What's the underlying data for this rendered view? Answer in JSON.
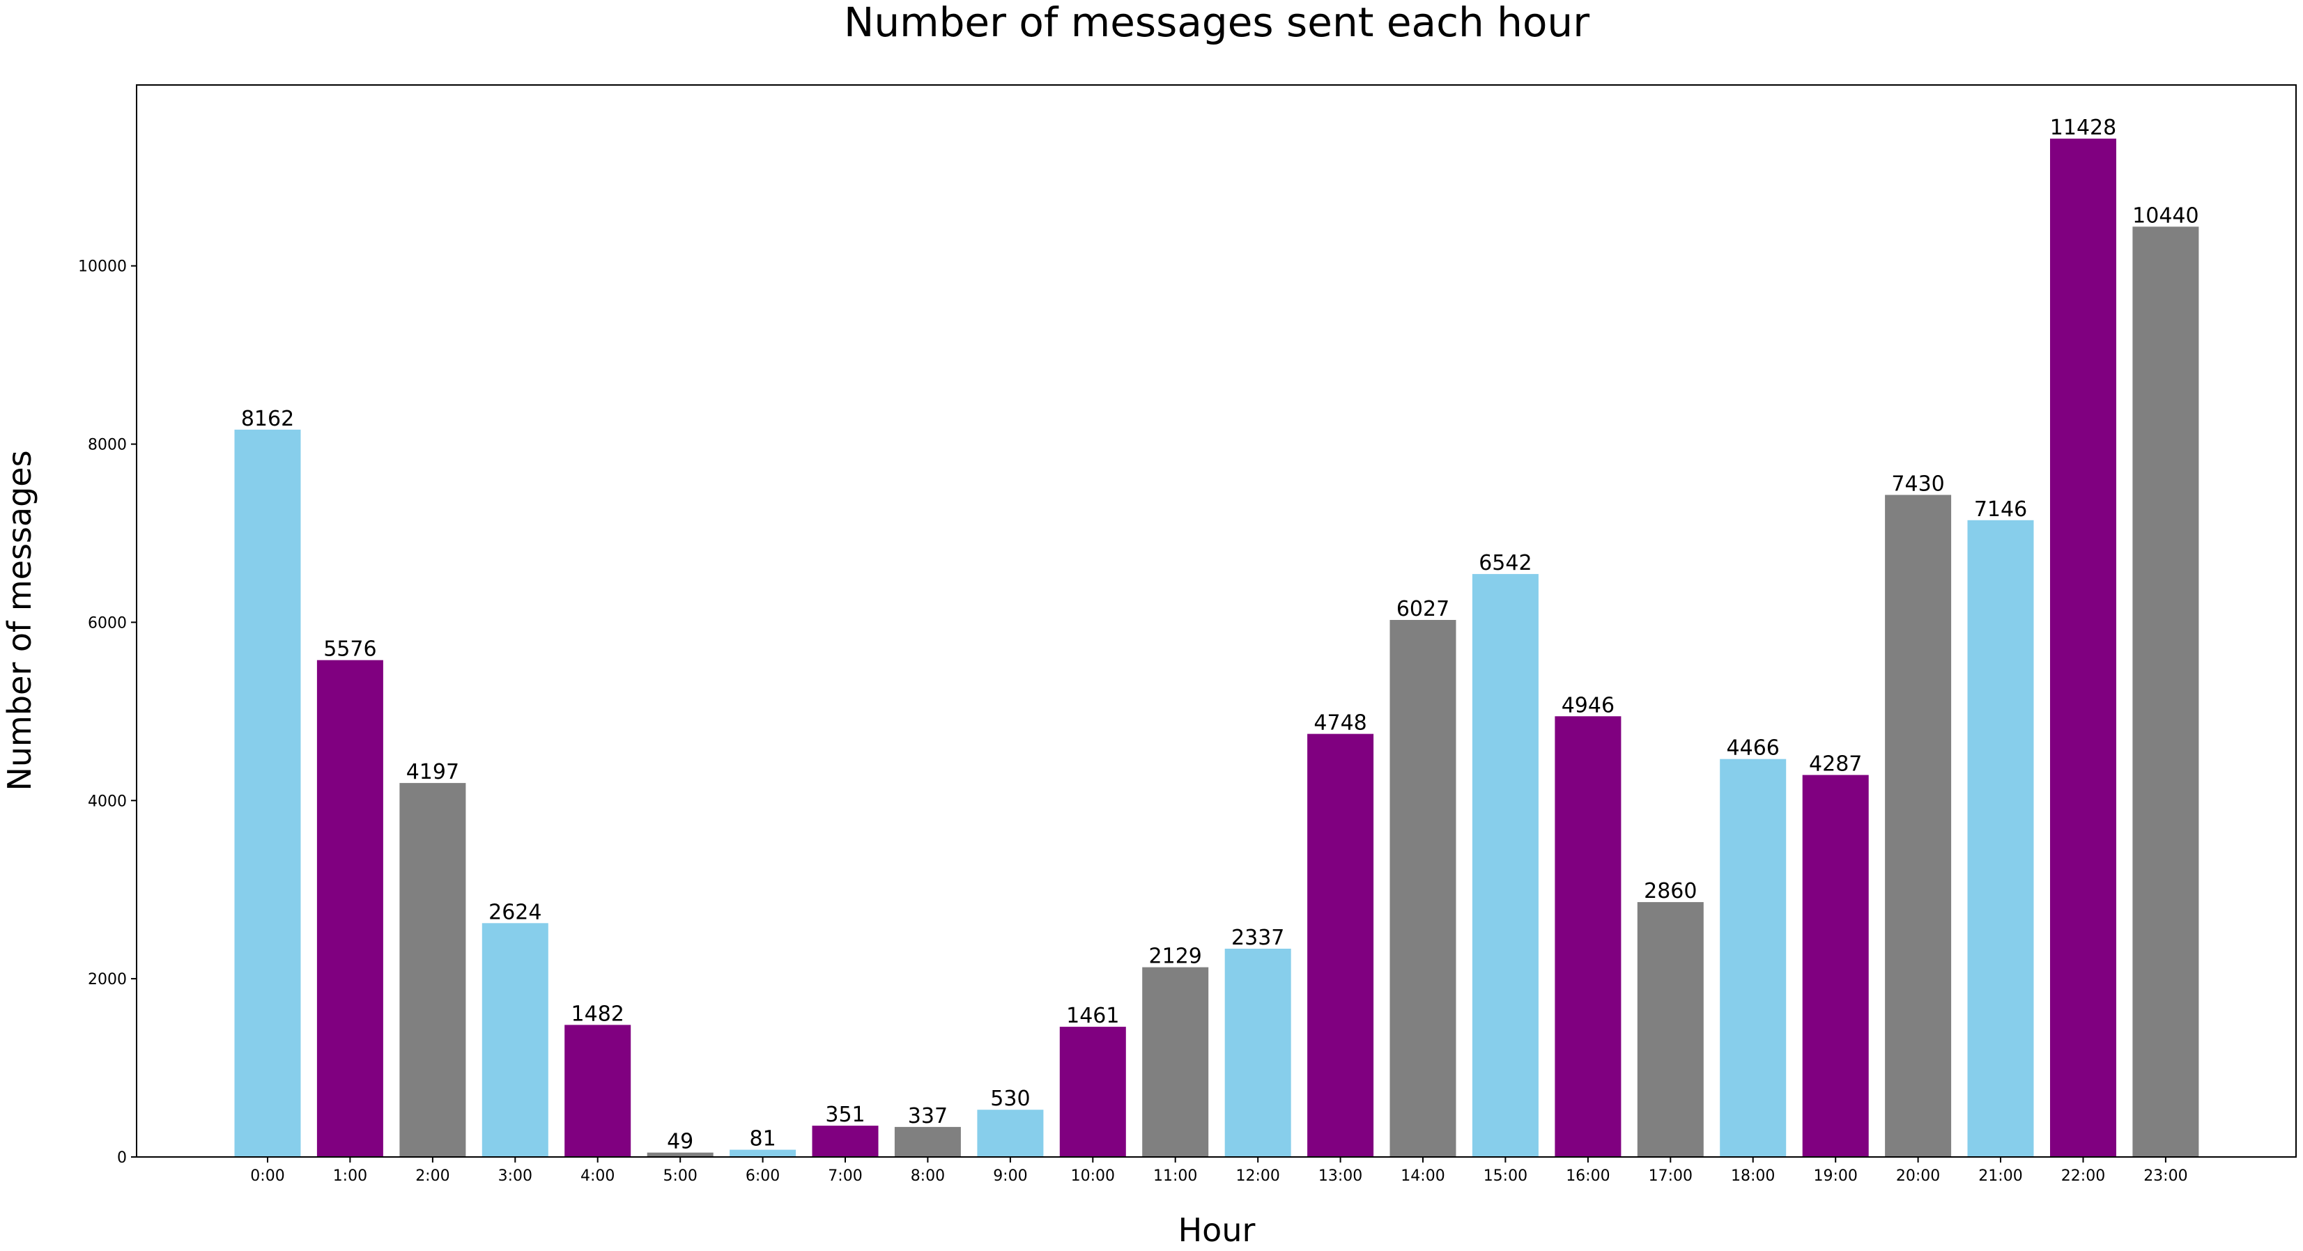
{
  "chart_data": {
    "type": "bar",
    "title": "Number of messages sent each hour",
    "xlabel": "Hour",
    "ylabel": "Number of messages",
    "categories": [
      "0:00",
      "1:00",
      "2:00",
      "3:00",
      "4:00",
      "5:00",
      "6:00",
      "7:00",
      "8:00",
      "9:00",
      "10:00",
      "11:00",
      "12:00",
      "13:00",
      "14:00",
      "15:00",
      "16:00",
      "17:00",
      "18:00",
      "19:00",
      "20:00",
      "21:00",
      "22:00",
      "23:00"
    ],
    "values": [
      8162,
      5576,
      4197,
      2624,
      1482,
      49,
      81,
      351,
      337,
      530,
      1461,
      2129,
      2337,
      4748,
      6027,
      6542,
      4946,
      2860,
      4466,
      4287,
      7430,
      7146,
      11428,
      10440
    ],
    "ylim": [
      0,
      12000
    ],
    "yticks": [
      0,
      2000,
      4000,
      6000,
      8000,
      10000
    ],
    "bar_colors": [
      "#87CEEB",
      "#800080",
      "#808080"
    ],
    "grid": false,
    "legend": "none",
    "data_labels": true
  }
}
